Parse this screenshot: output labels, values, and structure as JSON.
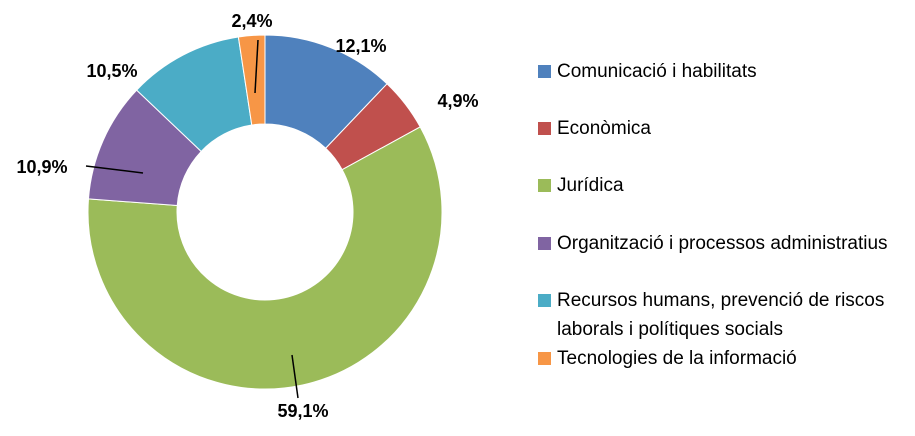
{
  "chart_data": {
    "type": "donut",
    "categories": [
      "Comunicació i habilitats",
      "Econòmica",
      "Jurídica",
      "Organització i processos administratius",
      "Recursos humans, prevenció de riscos laborals i polítiques socials",
      "Tecnologies de la informació"
    ],
    "values": [
      12.1,
      4.9,
      59.1,
      10.9,
      10.5,
      2.4
    ],
    "value_labels": [
      "12,1%",
      "4,9%",
      "59,1%",
      "10,9%",
      "10,5%",
      "2,4%"
    ],
    "colors": [
      "#4f81bd",
      "#c0504d",
      "#9bbb59",
      "#8064a2",
      "#4bacc6",
      "#f79646"
    ],
    "legend": "right"
  }
}
